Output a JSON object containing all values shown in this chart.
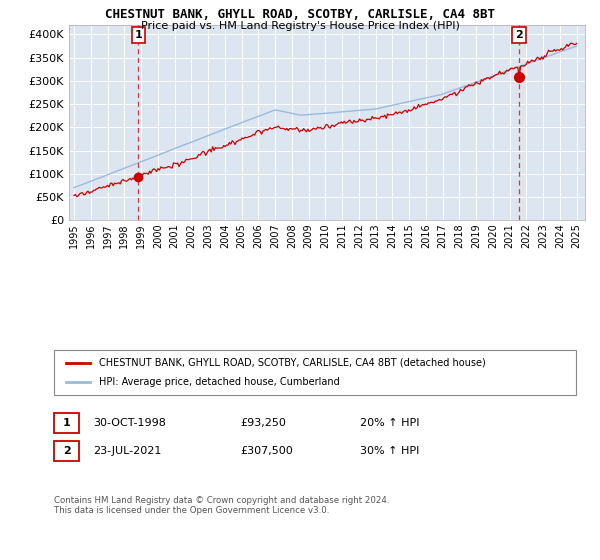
{
  "title1": "CHESTNUT BANK, GHYLL ROAD, SCOTBY, CARLISLE, CA4 8BT",
  "title2": "Price paid vs. HM Land Registry's House Price Index (HPI)",
  "legend_line1": "CHESTNUT BANK, GHYLL ROAD, SCOTBY, CARLISLE, CA4 8BT (detached house)",
  "legend_line2": "HPI: Average price, detached house, Cumberland",
  "annotation1_label": "1",
  "annotation1_date": "30-OCT-1998",
  "annotation1_price": "£93,250",
  "annotation1_hpi": "20% ↑ HPI",
  "annotation1_year": 1998.83,
  "annotation1_value": 93250,
  "annotation2_label": "2",
  "annotation2_date": "23-JUL-2021",
  "annotation2_price": "£307,500",
  "annotation2_hpi": "30% ↑ HPI",
  "annotation2_year": 2021.56,
  "annotation2_value": 307500,
  "footer": "Contains HM Land Registry data © Crown copyright and database right 2024.\nThis data is licensed under the Open Government Licence v3.0.",
  "fig_bg_color": "#ffffff",
  "plot_bg_color": "#dde5f0",
  "grid_color": "#ffffff",
  "red_color": "#cc0000",
  "blue_color": "#99bbdd",
  "ylim": [
    0,
    420000
  ],
  "yticks": [
    0,
    50000,
    100000,
    150000,
    200000,
    250000,
    300000,
    350000,
    400000
  ],
  "xlim_left": 1994.7,
  "xlim_right": 2025.5
}
